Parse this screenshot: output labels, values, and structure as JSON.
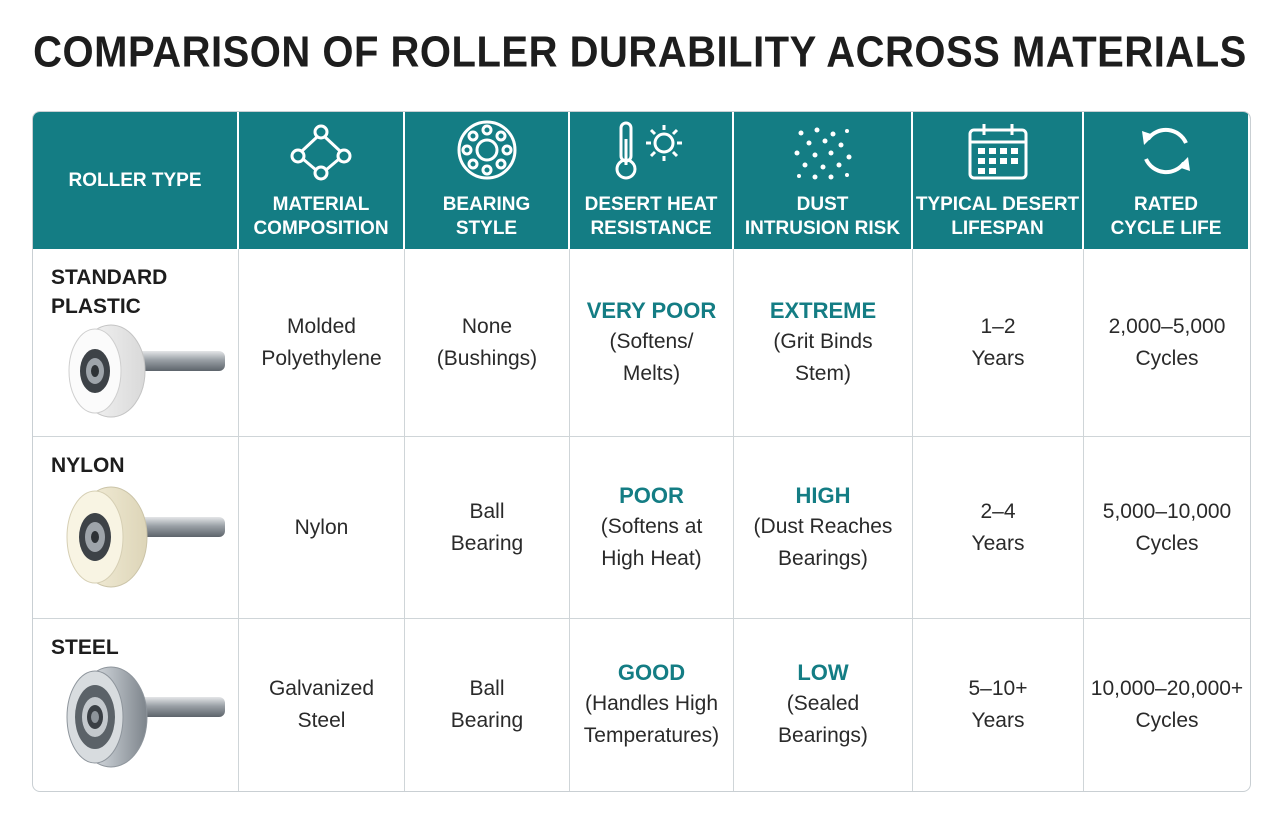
{
  "title": "COMPARISON OF ROLLER DURABILITY ACROSS MATERIALS",
  "colors": {
    "header_bg": "#147d84",
    "accent_text": "#147d84"
  },
  "headers": [
    {
      "label": "ROLLER TYPE",
      "icon": ""
    },
    {
      "label": "MATERIAL\nCOMPOSITION",
      "icon": "molecule-icon"
    },
    {
      "label": "BEARING\nSTYLE",
      "icon": "bearing-icon"
    },
    {
      "label": "DESERT HEAT\nRESISTANCE",
      "icon": "thermometer-sun-icon"
    },
    {
      "label": "DUST\nINTRUSION RISK",
      "icon": "dust-particles-icon"
    },
    {
      "label": "TYPICAL DESERT\nLIFESPAN",
      "icon": "calendar-icon"
    },
    {
      "label": "RATED\nCYCLE LIFE",
      "icon": "cycle-arrows-icon"
    }
  ],
  "rows": [
    {
      "type": "STANDARD\nPLASTIC",
      "material": "Molded\nPolyethylene",
      "bearing": "None\n(Bushings)",
      "heat_rating": "VERY POOR",
      "heat_desc": "(Softens/\nMelts)",
      "dust_rating": "EXTREME",
      "dust_desc": "(Grit Binds\nStem)",
      "lifespan": "1–2\nYears",
      "cycles": "2,000–5,000\nCycles"
    },
    {
      "type": "NYLON",
      "material": "Nylon",
      "bearing": "Ball\nBearing",
      "heat_rating": "POOR",
      "heat_desc": "(Softens at\nHigh Heat)",
      "dust_rating": "HIGH",
      "dust_desc": "(Dust Reaches\nBearings)",
      "lifespan": "2–4\nYears",
      "cycles": "5,000–10,000\nCycles"
    },
    {
      "type": "STEEL",
      "material": "Galvanized\nSteel",
      "bearing": "Ball\nBearing",
      "heat_rating": "GOOD",
      "heat_desc": "(Handles High\nTemperatures)",
      "dust_rating": "LOW",
      "dust_desc": "(Sealed\nBearings)",
      "lifespan": "5–10+\nYears",
      "cycles": "10,000–20,000+\nCycles"
    }
  ]
}
